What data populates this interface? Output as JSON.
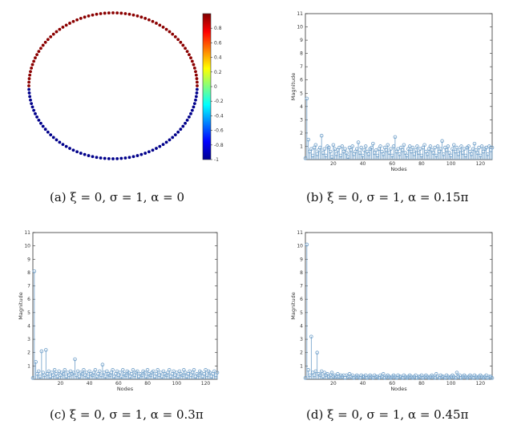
{
  "captions": {
    "a": "(a) ξ = 0, σ = 1, α = 0",
    "b": "(b) ξ = 0, σ = 1, α = 0.15π",
    "c": "(c) ξ = 0, σ = 1, α = 0.3π",
    "d": "(d) ξ = 0, σ = 1, α = 0.45π"
  },
  "chart_data": [
    {
      "type": "scatter",
      "panel": "a",
      "nodes": 128,
      "layout": "ring",
      "colorbar": {
        "range": [
          -1,
          1
        ],
        "ticks": [
          0.8,
          0.6,
          0.4,
          0.2,
          0,
          -0.2,
          -0.4,
          -0.6,
          -0.8,
          -1
        ],
        "tick_labels": [
          "0.8",
          "0.6",
          "0.4",
          "0.2",
          "0",
          "-0.2",
          "-0.4",
          "-0.6",
          "-0.8",
          "-1"
        ]
      },
      "top_half_value": 1,
      "bottom_half_value": -1
    },
    {
      "type": "stem",
      "panel": "b",
      "xlabel": "Nodes",
      "ylabel": "Magnitude",
      "xlim": [
        1,
        128
      ],
      "ylim": [
        0,
        11
      ],
      "xticks": [
        20,
        40,
        60,
        80,
        100,
        120
      ],
      "yticks": [
        1,
        2,
        3,
        4,
        5,
        6,
        7,
        8,
        9,
        10,
        11
      ],
      "values": [
        0.1,
        4.6,
        1.5,
        0.6,
        0.8,
        0.3,
        0.9,
        1.1,
        0.4,
        0.7,
        0.9,
        1.8,
        0.5,
        0.8,
        0.3,
        1.0,
        0.9,
        0.6,
        0.2,
        1.1,
        0.8,
        0.4,
        0.7,
        0.9,
        0.3,
        1.0,
        0.6,
        0.8,
        0.5,
        0.2,
        0.9,
        0.7,
        1.0,
        0.4,
        0.6,
        0.8,
        1.3,
        0.5,
        0.9,
        0.3,
        0.7,
        1.0,
        0.6,
        0.4,
        0.8,
        0.9,
        1.2,
        0.5,
        0.7,
        0.3,
        0.8,
        1.0,
        0.6,
        0.4,
        0.9,
        0.7,
        1.1,
        0.5,
        0.8,
        0.3,
        1.0,
        1.7,
        0.6,
        0.8,
        0.4,
        0.9,
        0.7,
        1.1,
        0.5,
        0.3,
        0.8,
        1.0,
        0.6,
        0.9,
        0.4,
        0.7,
        1.0,
        0.5,
        0.8,
        0.3,
        0.9,
        1.1,
        0.6,
        0.4,
        0.8,
        1.0,
        0.7,
        0.5,
        0.9,
        0.3,
        1.0,
        0.6,
        0.8,
        1.4,
        0.4,
        0.9,
        0.7,
        1.0,
        0.5,
        0.3,
        0.8,
        1.1,
        0.6,
        0.9,
        0.4,
        0.7,
        1.0,
        0.5,
        0.8,
        0.3,
        0.9,
        1.0,
        0.6,
        0.4,
        0.8,
        1.2,
        0.7,
        0.5,
        0.9,
        0.3,
        1.0,
        0.6,
        0.8,
        0.9,
        0.4,
        1.0,
        0.7,
        0.9
      ]
    },
    {
      "type": "stem",
      "panel": "c",
      "xlabel": "Nodes",
      "ylabel": "Magnitude",
      "xlim": [
        1,
        128
      ],
      "ylim": [
        0,
        11
      ],
      "xticks": [
        20,
        40,
        60,
        80,
        100,
        120
      ],
      "yticks": [
        1,
        2,
        3,
        4,
        5,
        6,
        7,
        8,
        9,
        10,
        11
      ],
      "values": [
        0.1,
        8.1,
        1.3,
        0.4,
        0.6,
        0.2,
        2.1,
        0.5,
        0.3,
        2.2,
        0.4,
        0.6,
        0.2,
        0.5,
        0.3,
        0.7,
        0.4,
        0.2,
        0.6,
        0.3,
        0.5,
        0.4,
        0.7,
        0.2,
        0.5,
        0.3,
        0.6,
        0.4,
        0.5,
        1.5,
        0.3,
        0.6,
        0.2,
        0.5,
        0.4,
        0.7,
        0.3,
        0.5,
        0.2,
        0.6,
        0.4,
        0.3,
        0.5,
        0.7,
        0.2,
        0.4,
        0.6,
        0.3,
        1.1,
        0.5,
        0.2,
        0.6,
        0.4,
        0.3,
        0.5,
        0.7,
        0.2,
        0.4,
        0.6,
        0.3,
        0.5,
        0.2,
        0.7,
        0.4,
        0.3,
        0.6,
        0.5,
        0.2,
        0.4,
        0.7,
        0.3,
        0.5,
        0.6,
        0.2,
        0.4,
        0.3,
        0.6,
        0.5,
        0.2,
        0.7,
        0.4,
        0.3,
        0.5,
        0.6,
        0.2,
        0.4,
        0.7,
        0.3,
        0.5,
        0.2,
        0.6,
        0.4,
        0.3,
        0.5,
        0.7,
        0.2,
        0.4,
        0.6,
        0.3,
        0.5,
        0.2,
        0.6,
        0.4,
        0.3,
        0.7,
        0.5,
        0.2,
        0.4,
        0.6,
        0.3,
        0.5,
        0.7,
        0.2,
        0.4,
        0.3,
        0.6,
        0.5,
        0.2,
        0.4,
        0.7,
        0.3,
        0.6,
        0.5,
        0.2,
        0.4,
        0.6,
        0.3,
        0.5
      ]
    },
    {
      "type": "stem",
      "panel": "d",
      "xlabel": "Nodes",
      "ylabel": "Magnitude",
      "xlim": [
        1,
        128
      ],
      "ylim": [
        0,
        11
      ],
      "xticks": [
        20,
        40,
        60,
        80,
        100,
        120
      ],
      "yticks": [
        1,
        2,
        3,
        4,
        5,
        6,
        7,
        8,
        9,
        10,
        11
      ],
      "values": [
        0.1,
        10.1,
        0.7,
        0.3,
        3.2,
        0.5,
        0.3,
        0.6,
        2.0,
        0.4,
        0.3,
        0.6,
        0.2,
        0.5,
        0.3,
        0.4,
        0.2,
        0.3,
        0.5,
        0.2,
        0.3,
        0.2,
        0.4,
        0.2,
        0.3,
        0.2,
        0.3,
        0.1,
        0.3,
        0.2,
        0.4,
        0.2,
        0.3,
        0.1,
        0.2,
        0.3,
        0.2,
        0.1,
        0.3,
        0.2,
        0.2,
        0.3,
        0.1,
        0.2,
        0.3,
        0.2,
        0.1,
        0.3,
        0.2,
        0.2,
        0.1,
        0.3,
        0.2,
        0.4,
        0.1,
        0.2,
        0.3,
        0.2,
        0.1,
        0.2,
        0.3,
        0.2,
        0.1,
        0.3,
        0.2,
        0.2,
        0.1,
        0.3,
        0.2,
        0.1,
        0.2,
        0.3,
        0.2,
        0.1,
        0.2,
        0.3,
        0.1,
        0.2,
        0.2,
        0.3,
        0.1,
        0.2,
        0.3,
        0.2,
        0.1,
        0.2,
        0.3,
        0.2,
        0.1,
        0.4,
        0.2,
        0.1,
        0.3,
        0.2,
        0.2,
        0.1,
        0.3,
        0.2,
        0.1,
        0.2,
        0.3,
        0.2,
        0.1,
        0.5,
        0.2,
        0.3,
        0.1,
        0.2,
        0.3,
        0.2,
        0.1,
        0.2,
        0.3,
        0.2,
        0.1,
        0.3,
        0.2,
        0.1,
        0.2,
        0.3,
        0.2,
        0.1,
        0.2,
        0.3,
        0.1,
        0.2,
        0.2,
        0.1
      ]
    }
  ]
}
